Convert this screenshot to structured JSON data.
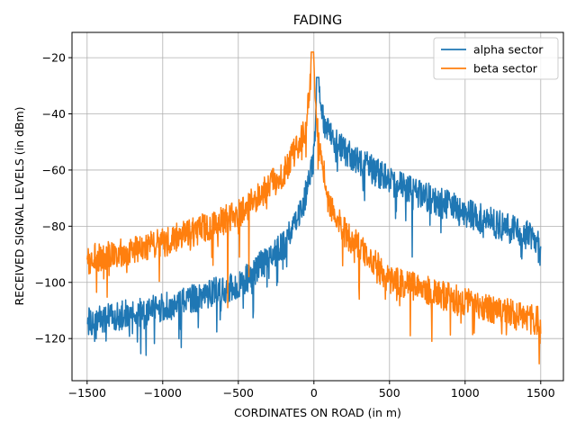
{
  "chart_data": {
    "type": "line",
    "title": "FADING",
    "xlabel": "CORDINATES ON ROAD (in m)",
    "ylabel": "RECEIVED SIGNAL LEVELS (in dBm)",
    "xlim": [
      -1600,
      1650
    ],
    "ylim": [
      -135,
      -11
    ],
    "xticks": [
      -1500,
      -1000,
      -500,
      0,
      500,
      1000,
      1500
    ],
    "xtick_labels": [
      "−1500",
      "−1000",
      "−500",
      "0",
      "500",
      "1000",
      "1500"
    ],
    "yticks": [
      -120,
      -100,
      -80,
      -60,
      -40,
      -20
    ],
    "ytick_labels": [
      "−120",
      "−100",
      "−80",
      "−60",
      "−40",
      "−20"
    ],
    "grid": true,
    "legend_position": "top-right",
    "x_range": [
      -1500,
      1500
    ],
    "sample_count": 1200,
    "series": [
      {
        "name": "alpha sector",
        "color": "#1f77b4",
        "peak_x": 25,
        "peak_y": -27,
        "envelope": [
          [
            -1500,
            -114
          ],
          [
            -1000,
            -109
          ],
          [
            -500,
            -101
          ],
          [
            -200,
            -87
          ],
          [
            -100,
            -77
          ],
          [
            -30,
            -64
          ],
          [
            0,
            -56
          ],
          [
            25,
            -27
          ],
          [
            70,
            -44
          ],
          [
            200,
            -53
          ],
          [
            500,
            -64
          ],
          [
            1000,
            -75
          ],
          [
            1500,
            -85
          ]
        ],
        "fading_depth": 14,
        "deep_fades": [
          [
            -1110,
            -126
          ],
          [
            -1450,
            -121
          ],
          [
            -410,
            -104
          ],
          [
            650,
            -91
          ],
          [
            1370,
            -91
          ]
        ]
      },
      {
        "name": "beta sector",
        "color": "#ff7f0e",
        "peak_x": -10,
        "peak_y": -18,
        "envelope": [
          [
            -1500,
            -92
          ],
          [
            -1000,
            -86
          ],
          [
            -500,
            -76
          ],
          [
            -200,
            -61
          ],
          [
            -50,
            -45
          ],
          [
            -10,
            -18
          ],
          [
            30,
            -50
          ],
          [
            100,
            -72
          ],
          [
            200,
            -82
          ],
          [
            500,
            -99
          ],
          [
            1000,
            -107
          ],
          [
            1500,
            -114
          ]
        ],
        "fading_depth": 14,
        "deep_fades": [
          [
            -570,
            -109
          ],
          [
            -430,
            -98
          ],
          [
            1490,
            -129
          ],
          [
            780,
            -121
          ],
          [
            300,
            -106
          ]
        ]
      }
    ]
  }
}
